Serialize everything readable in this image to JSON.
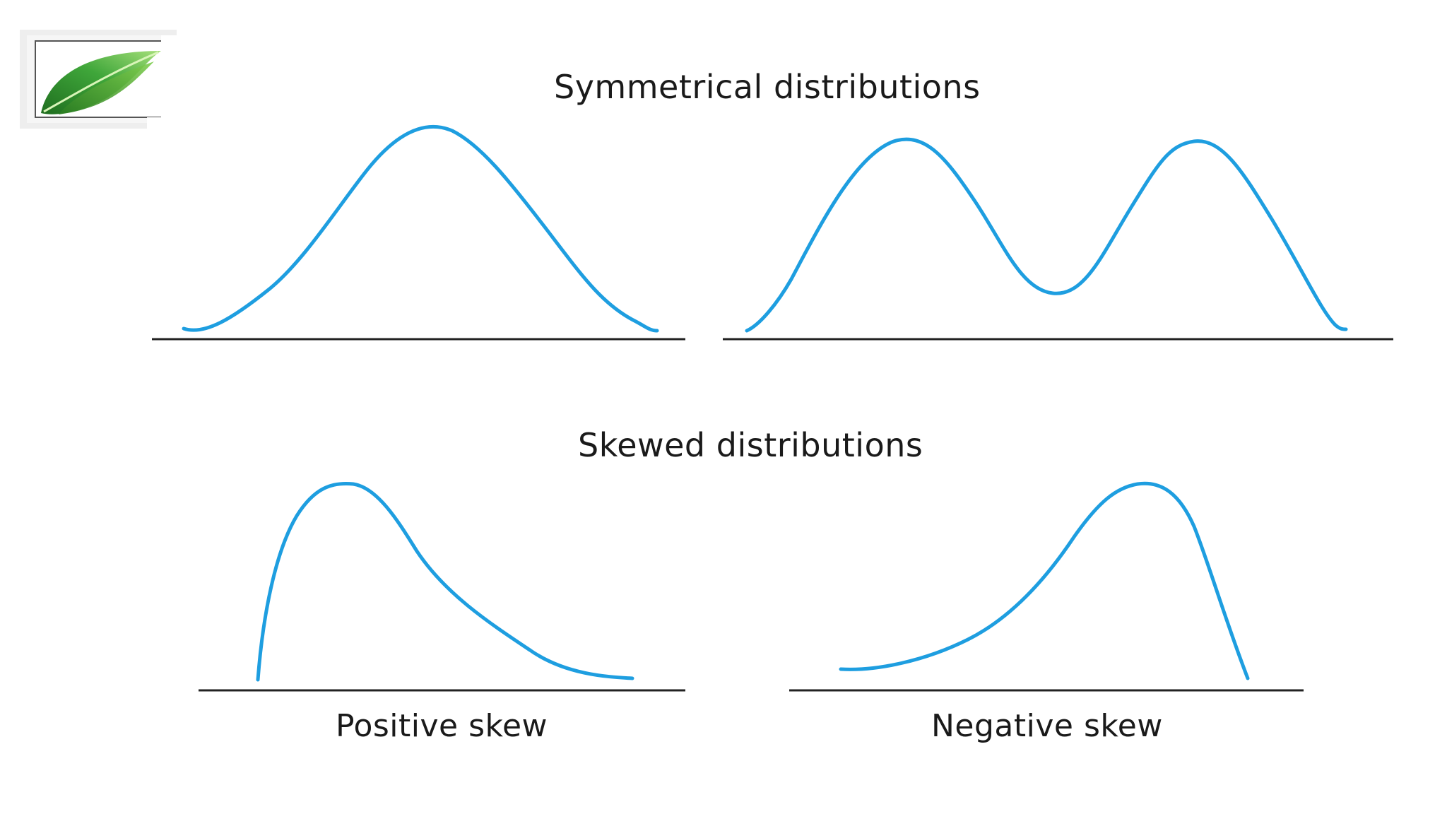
{
  "slide": {
    "symmetrical_title": "Symmetrical distributions",
    "skewed_title": "Skewed distributions",
    "positive_caption": "Positive skew",
    "negative_caption": "Negative skew"
  },
  "logo": {
    "icon": "green-leaf-icon",
    "leaf_color": "#2e8b2e",
    "leaf_highlight": "#a6e07a"
  },
  "colors": {
    "curve": "#1e9ee0",
    "axis": "#222222",
    "text": "#1a1a1a"
  },
  "diagrams": [
    {
      "name": "symmetrical-unimodal-diagram",
      "shape": "symmetric unimodal bell curve"
    },
    {
      "name": "symmetrical-bimodal-diagram",
      "shape": "symmetric bimodal curve"
    },
    {
      "name": "positive-skew-diagram",
      "shape": "right-skewed curve with long right tail"
    },
    {
      "name": "negative-skew-diagram",
      "shape": "left-skewed curve with long left tail"
    }
  ]
}
